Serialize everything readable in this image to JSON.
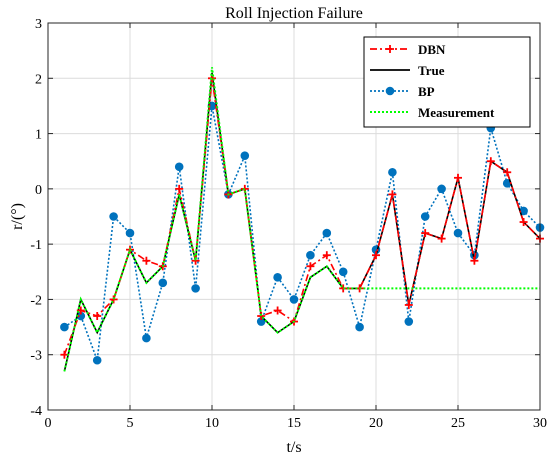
{
  "chart_data": {
    "type": "line",
    "title": "Roll Injection Failure",
    "xlabel": "t/s",
    "ylabel": "r/(°)",
    "xlim": [
      0,
      30
    ],
    "ylim": [
      -4,
      3
    ],
    "xticks": [
      0,
      5,
      10,
      15,
      20,
      25,
      30
    ],
    "yticks": [
      -4,
      -3,
      -2,
      -1,
      0,
      1,
      2,
      3
    ],
    "grid": true,
    "legend_position": "top-right",
    "series": [
      {
        "name": "DBN",
        "color": "#ff0000",
        "style": "dash-dot",
        "marker": "plus",
        "x": [
          1,
          2,
          3,
          4,
          5,
          6,
          7,
          8,
          9,
          10,
          11,
          12,
          13,
          14,
          15,
          16,
          17,
          18,
          19,
          20,
          21,
          22,
          23,
          24,
          25,
          26,
          27,
          28,
          29,
          30
        ],
        "y": [
          -3.0,
          -2.2,
          -2.3,
          -2.0,
          -1.1,
          -1.3,
          -1.4,
          0.0,
          -1.3,
          2.0,
          -0.1,
          0.0,
          -2.3,
          -2.2,
          -2.4,
          -1.4,
          -1.2,
          -1.8,
          -1.8,
          -1.2,
          -0.1,
          -2.1,
          -0.8,
          -0.9,
          0.2,
          -1.3,
          0.5,
          0.3,
          -0.6,
          -0.9
        ]
      },
      {
        "name": "True",
        "color": "#000000",
        "style": "solid",
        "marker": "none",
        "x": [
          1,
          2,
          3,
          4,
          5,
          6,
          7,
          8,
          9,
          10,
          11,
          12,
          13,
          14,
          15,
          16,
          17,
          18,
          19,
          20,
          21,
          22,
          23,
          24,
          25,
          26,
          27,
          28,
          29,
          30
        ],
        "y": [
          -3.3,
          -2.0,
          -2.6,
          -2.0,
          -1.1,
          -1.7,
          -1.4,
          -0.1,
          -1.3,
          2.1,
          -0.1,
          0.0,
          -2.3,
          -2.6,
          -2.4,
          -1.6,
          -1.4,
          -1.8,
          -1.8,
          -1.2,
          -0.1,
          -2.1,
          -0.8,
          -0.9,
          0.2,
          -1.3,
          0.5,
          0.3,
          -0.6,
          -0.9
        ]
      },
      {
        "name": "BP",
        "color": "#0072bd",
        "style": "dotted",
        "marker": "circle",
        "x": [
          1,
          2,
          3,
          4,
          5,
          6,
          7,
          8,
          9,
          10,
          11,
          12,
          13,
          14,
          15,
          16,
          17,
          18,
          19,
          20,
          21,
          22,
          23,
          24,
          25,
          26,
          27,
          28,
          29,
          30
        ],
        "y": [
          -2.5,
          -2.3,
          -3.1,
          -0.5,
          -0.8,
          -2.7,
          -1.7,
          0.4,
          -1.8,
          1.5,
          -0.1,
          0.6,
          -2.4,
          -1.6,
          -2.0,
          -1.2,
          -0.8,
          -1.5,
          -2.5,
          -1.1,
          0.3,
          -2.4,
          -0.5,
          0.0,
          -0.8,
          -1.2,
          1.1,
          0.1,
          -0.4,
          -0.7
        ]
      },
      {
        "name": "Measurement",
        "color": "#00ff00",
        "style": "dotted",
        "marker": "none",
        "x": [
          1,
          2,
          3,
          4,
          5,
          6,
          7,
          8,
          9,
          10,
          11,
          12,
          13,
          14,
          15,
          16,
          17,
          18,
          19,
          20,
          21,
          22,
          23,
          24,
          25,
          26,
          27,
          28,
          29,
          30
        ],
        "y": [
          -3.3,
          -2.0,
          -2.6,
          -2.0,
          -1.1,
          -1.7,
          -1.4,
          -0.1,
          -1.3,
          2.2,
          -0.1,
          0.0,
          -2.3,
          -2.6,
          -2.4,
          -1.6,
          -1.4,
          -1.8,
          -1.8,
          -1.8,
          -1.8,
          -1.8,
          -1.8,
          -1.8,
          -1.8,
          -1.8,
          -1.8,
          -1.8,
          -1.8,
          -1.8
        ]
      }
    ]
  }
}
